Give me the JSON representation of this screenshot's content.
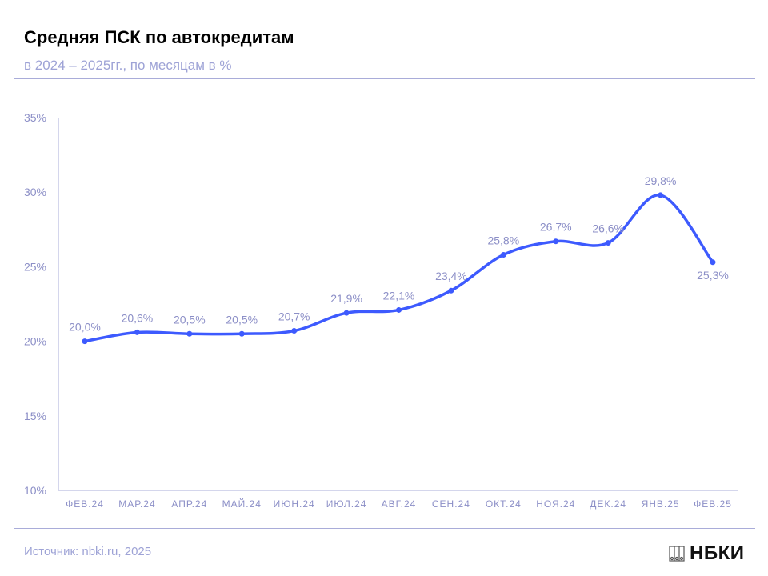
{
  "header": {
    "title": "Средняя ПСК по автокредитам",
    "subtitle": "в 2024 – 2025гг., по месяцам в %"
  },
  "footer": {
    "source": "Источник: nbki.ru, 2025",
    "logo_text": "НБКИ"
  },
  "colors": {
    "line": "#3d5afe",
    "label": "#8c8fc7",
    "axis": "#a9acd9"
  },
  "chart_data": {
    "type": "line",
    "title": "Средняя ПСК по автокредитам",
    "categories": [
      "ФЕВ.24",
      "МАР.24",
      "АПР.24",
      "МАЙ.24",
      "ИЮН.24",
      "ИЮЛ.24",
      "АВГ.24",
      "СЕН.24",
      "ОКТ.24",
      "НОЯ.24",
      "ДЕК.24",
      "ЯНВ.25",
      "ФЕВ.25"
    ],
    "values": [
      20.0,
      20.6,
      20.5,
      20.5,
      20.7,
      21.9,
      22.1,
      23.4,
      25.8,
      26.7,
      26.6,
      29.8,
      25.3
    ],
    "data_labels": [
      "20,0%",
      "20,6%",
      "20,5%",
      "20,5%",
      "20,7%",
      "21,9%",
      "22,1%",
      "23,4%",
      "25,8%",
      "26,7%",
      "26,6%",
      "29,8%",
      "25,3%"
    ],
    "yticks": [
      "10%",
      "15%",
      "20%",
      "25%",
      "30%",
      "35%"
    ],
    "ytick_values": [
      10,
      15,
      20,
      25,
      30,
      35
    ],
    "ylim": [
      10,
      35
    ],
    "grid": false,
    "xlabel": "",
    "ylabel": ""
  }
}
